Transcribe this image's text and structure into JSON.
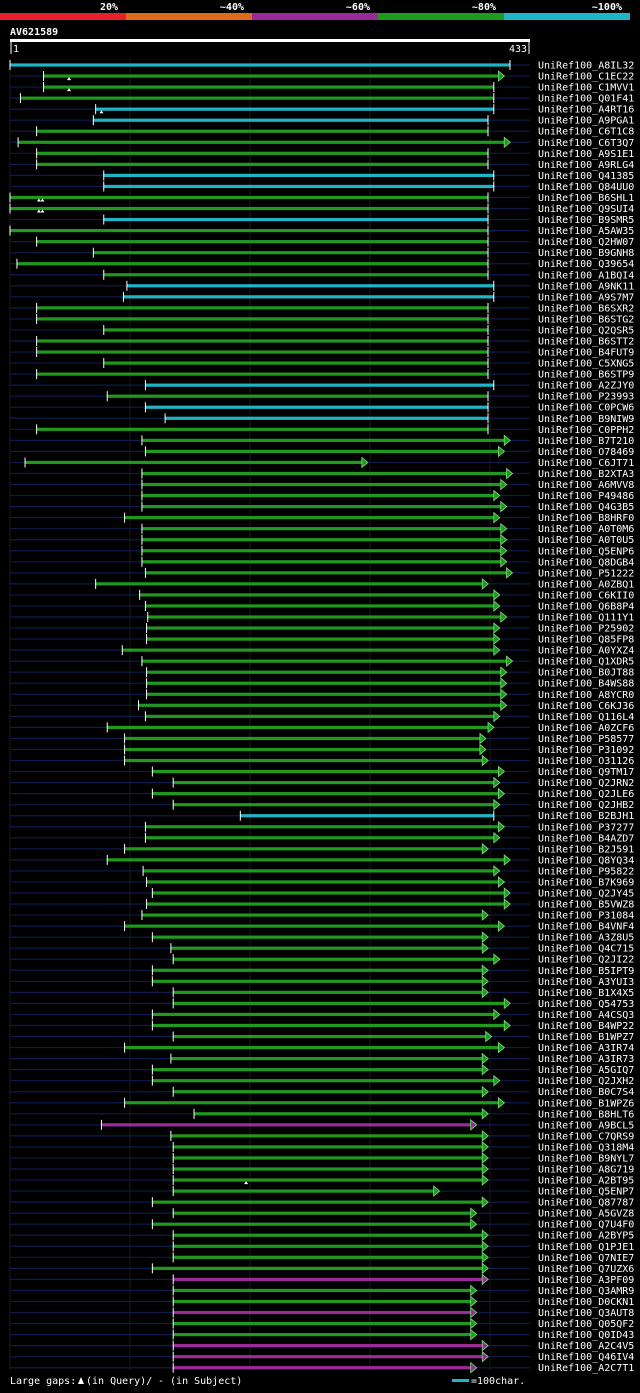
{
  "chart_data": {
    "type": "alignment-overview",
    "title": "AV621589",
    "query_length": 433,
    "axis": {
      "start_label": "1",
      "end_label": "433"
    },
    "identity_legend": [
      {
        "label": "20%",
        "color": "#e8202a"
      },
      {
        "label": "~40%",
        "color": "#e06a1a"
      },
      {
        "label": "~60%",
        "color": "#9b2b9b"
      },
      {
        "label": "~80%",
        "color": "#1f9a1f"
      },
      {
        "label": "~100%",
        "color": "#1fb5c8"
      }
    ],
    "footer": {
      "gaps_label": "Large gaps:",
      "query_gap_text": "(in Query)/",
      "subject_gap_text": "- (in Subject)",
      "scale_text": "=100char."
    },
    "hits": [
      {
        "id": "UniRef100_A8IL32",
        "s": 1,
        "e": 433,
        "c": "cyan",
        "q": [],
        "a": false
      },
      {
        "id": "UniRef100_C1EC22",
        "s": 30,
        "e": 423,
        "c": "green",
        "q": [],
        "a": true
      },
      {
        "id": "UniRef100_C1MVV1",
        "s": 30,
        "e": 419,
        "c": "green",
        "q": [
          52
        ],
        "a": false
      },
      {
        "id": "UniRef100_Q01F41",
        "s": 10,
        "e": 419,
        "c": "green",
        "q": [
          52
        ],
        "a": false
      },
      {
        "id": "UniRef100_A4RT16",
        "s": 75,
        "e": 419,
        "c": "cyan",
        "q": [],
        "a": false
      },
      {
        "id": "UniRef100_A9PGA1",
        "s": 73,
        "e": 414,
        "c": "cyan",
        "q": [
          80
        ],
        "a": false
      },
      {
        "id": "UniRef100_C6T1C8",
        "s": 24,
        "e": 414,
        "c": "green",
        "q": [],
        "a": false
      },
      {
        "id": "UniRef100_C6T3Q7",
        "s": 8,
        "e": 428,
        "c": "green",
        "q": [],
        "a": true
      },
      {
        "id": "UniRef100_A9S1E1",
        "s": 24,
        "e": 414,
        "c": "green",
        "q": [],
        "a": false
      },
      {
        "id": "UniRef100_A9RLG4",
        "s": 24,
        "e": 414,
        "c": "green",
        "q": [],
        "a": false
      },
      {
        "id": "UniRef100_Q41385",
        "s": 82,
        "e": 419,
        "c": "cyan",
        "q": [],
        "a": false
      },
      {
        "id": "UniRef100_Q84UU0",
        "s": 82,
        "e": 419,
        "c": "cyan",
        "q": [],
        "a": false
      },
      {
        "id": "UniRef100_B6SHL1",
        "s": 1,
        "e": 414,
        "c": "green",
        "q": [],
        "a": false
      },
      {
        "id": "UniRef100_Q9SUI4",
        "s": 1,
        "e": 414,
        "c": "green",
        "q": [
          26,
          29
        ],
        "a": false
      },
      {
        "id": "UniRef100_B9SMR5",
        "s": 82,
        "e": 414,
        "c": "cyan",
        "q": [
          26,
          29
        ],
        "a": false
      },
      {
        "id": "UniRef100_A5AW35",
        "s": 1,
        "e": 414,
        "c": "green",
        "q": [],
        "a": false
      },
      {
        "id": "UniRef100_Q2HW07",
        "s": 24,
        "e": 414,
        "c": "green",
        "q": [],
        "a": false
      },
      {
        "id": "UniRef100_B9GNH8",
        "s": 73,
        "e": 414,
        "c": "green",
        "q": [],
        "a": false
      },
      {
        "id": "UniRef100_Q39654",
        "s": 7,
        "e": 414,
        "c": "green",
        "q": [],
        "a": false
      },
      {
        "id": "UniRef100_A1BQI4",
        "s": 82,
        "e": 414,
        "c": "green",
        "q": [],
        "a": false
      },
      {
        "id": "UniRef100_A9NK11",
        "s": 102,
        "e": 419,
        "c": "cyan",
        "q": [],
        "a": false
      },
      {
        "id": "UniRef100_A9S7M7",
        "s": 99,
        "e": 419,
        "c": "cyan",
        "q": [],
        "a": false
      },
      {
        "id": "UniRef100_B6SXR2",
        "s": 24,
        "e": 414,
        "c": "green",
        "q": [],
        "a": false
      },
      {
        "id": "UniRef100_B6STG2",
        "s": 24,
        "e": 414,
        "c": "green",
        "q": [],
        "a": false
      },
      {
        "id": "UniRef100_Q2QSR5",
        "s": 82,
        "e": 414,
        "c": "green",
        "q": [],
        "a": false
      },
      {
        "id": "UniRef100_B6STT2",
        "s": 24,
        "e": 414,
        "c": "green",
        "q": [],
        "a": false
      },
      {
        "id": "UniRef100_B4FUT9",
        "s": 24,
        "e": 414,
        "c": "green",
        "q": [],
        "a": false
      },
      {
        "id": "UniRef100_C5XNG5",
        "s": 82,
        "e": 414,
        "c": "green",
        "q": [],
        "a": false
      },
      {
        "id": "UniRef100_B6STP9",
        "s": 24,
        "e": 414,
        "c": "green",
        "q": [],
        "a": false
      },
      {
        "id": "UniRef100_A2ZJY0",
        "s": 118,
        "e": 419,
        "c": "cyan",
        "q": [],
        "a": false
      },
      {
        "id": "UniRef100_P23993",
        "s": 85,
        "e": 414,
        "c": "green",
        "q": [],
        "a": false
      },
      {
        "id": "UniRef100_C0PCW6",
        "s": 118,
        "e": 414,
        "c": "cyan",
        "q": [],
        "a": false
      },
      {
        "id": "UniRef100_B9NIW9",
        "s": 135,
        "e": 414,
        "c": "cyan",
        "q": [],
        "a": false
      },
      {
        "id": "UniRef100_C0PPH2",
        "s": 24,
        "e": 414,
        "c": "green",
        "q": [],
        "a": false
      },
      {
        "id": "UniRef100_B7T210",
        "s": 115,
        "e": 428,
        "c": "green",
        "q": [],
        "a": true
      },
      {
        "id": "UniRef100_O78469",
        "s": 118,
        "e": 423,
        "c": "green",
        "q": [],
        "a": true
      },
      {
        "id": "UniRef100_C6JT71",
        "s": 14,
        "e": 305,
        "c": "green",
        "q": [],
        "a": true
      },
      {
        "id": "UniRef100_B2XTA3",
        "s": 115,
        "e": 430,
        "c": "green",
        "q": [],
        "a": true
      },
      {
        "id": "UniRef100_A6MVV8",
        "s": 115,
        "e": 425,
        "c": "green",
        "q": [],
        "a": true
      },
      {
        "id": "UniRef100_P49486",
        "s": 115,
        "e": 419,
        "c": "green",
        "q": [],
        "a": true
      },
      {
        "id": "UniRef100_Q4G3B5",
        "s": 115,
        "e": 425,
        "c": "green",
        "q": [],
        "a": true
      },
      {
        "id": "UniRef100_B8HRF0",
        "s": 100,
        "e": 419,
        "c": "green",
        "q": [],
        "a": true
      },
      {
        "id": "UniRef100_A0T0M6",
        "s": 115,
        "e": 425,
        "c": "green",
        "q": [],
        "a": true
      },
      {
        "id": "UniRef100_A0T0U5",
        "s": 115,
        "e": 425,
        "c": "green",
        "q": [],
        "a": true
      },
      {
        "id": "UniRef100_Q5ENP6",
        "s": 115,
        "e": 425,
        "c": "green",
        "q": [],
        "a": true
      },
      {
        "id": "UniRef100_Q8DGB4",
        "s": 115,
        "e": 425,
        "c": "green",
        "q": [],
        "a": true
      },
      {
        "id": "UniRef100_P51222",
        "s": 118,
        "e": 430,
        "c": "green",
        "q": [],
        "a": true
      },
      {
        "id": "UniRef100_A0ZBQ1",
        "s": 75,
        "e": 409,
        "c": "green",
        "q": [],
        "a": true
      },
      {
        "id": "UniRef100_C6KII0",
        "s": 113,
        "e": 419,
        "c": "green",
        "q": [],
        "a": true
      },
      {
        "id": "UniRef100_Q6B8P4",
        "s": 118,
        "e": 419,
        "c": "green",
        "q": [],
        "a": true
      },
      {
        "id": "UniRef100_Q111Y1",
        "s": 120,
        "e": 425,
        "c": "green",
        "q": [],
        "a": true
      },
      {
        "id": "UniRef100_P25902",
        "s": 119,
        "e": 419,
        "c": "green",
        "q": [],
        "a": true
      },
      {
        "id": "UniRef100_Q85FP8",
        "s": 119,
        "e": 419,
        "c": "green",
        "q": [],
        "a": true
      },
      {
        "id": "UniRef100_A0YXZ4",
        "s": 98,
        "e": 419,
        "c": "green",
        "q": [],
        "a": true
      },
      {
        "id": "UniRef100_Q1XDR5",
        "s": 115,
        "e": 430,
        "c": "green",
        "q": [],
        "a": true
      },
      {
        "id": "UniRef100_B0JT88",
        "s": 119,
        "e": 425,
        "c": "green",
        "q": [],
        "a": true
      },
      {
        "id": "UniRef100_B4WS88",
        "s": 119,
        "e": 425,
        "c": "green",
        "q": [],
        "a": true
      },
      {
        "id": "UniRef100_A8YCR0",
        "s": 119,
        "e": 425,
        "c": "green",
        "q": [],
        "a": true
      },
      {
        "id": "UniRef100_C6KJ36",
        "s": 112,
        "e": 425,
        "c": "green",
        "q": [],
        "a": true
      },
      {
        "id": "UniRef100_Q116L4",
        "s": 118,
        "e": 419,
        "c": "green",
        "q": [],
        "a": true
      },
      {
        "id": "UniRef100_A0ZCF6",
        "s": 85,
        "e": 414,
        "c": "green",
        "q": [],
        "a": true
      },
      {
        "id": "UniRef100_P58577",
        "s": 100,
        "e": 407,
        "c": "green",
        "q": [],
        "a": true
      },
      {
        "id": "UniRef100_P31092",
        "s": 100,
        "e": 407,
        "c": "green",
        "q": [],
        "a": true
      },
      {
        "id": "UniRef100_O31126",
        "s": 100,
        "e": 409,
        "c": "green",
        "q": [],
        "a": true
      },
      {
        "id": "UniRef100_Q9TM17",
        "s": 124,
        "e": 423,
        "c": "green",
        "q": [],
        "a": true
      },
      {
        "id": "UniRef100_Q2JRN2",
        "s": 142,
        "e": 419,
        "c": "green",
        "q": [],
        "a": true
      },
      {
        "id": "UniRef100_Q2JLE6",
        "s": 124,
        "e": 423,
        "c": "green",
        "q": [],
        "a": true
      },
      {
        "id": "UniRef100_Q2JHB2",
        "s": 142,
        "e": 419,
        "c": "green",
        "q": [],
        "a": true
      },
      {
        "id": "UniRef100_B2BJH1",
        "s": 200,
        "e": 419,
        "c": "cyan",
        "q": [],
        "a": false
      },
      {
        "id": "UniRef100_P37277",
        "s": 118,
        "e": 423,
        "c": "green",
        "q": [],
        "a": true
      },
      {
        "id": "UniRef100_B4AZD7",
        "s": 118,
        "e": 419,
        "c": "green",
        "q": [],
        "a": true
      },
      {
        "id": "UniRef100_B2J591",
        "s": 100,
        "e": 409,
        "c": "green",
        "q": [],
        "a": true
      },
      {
        "id": "UniRef100_Q8YQ34",
        "s": 85,
        "e": 428,
        "c": "green",
        "q": [],
        "a": true
      },
      {
        "id": "UniRef100_P95822",
        "s": 116,
        "e": 419,
        "c": "green",
        "q": [],
        "a": true
      },
      {
        "id": "UniRef100_B7K969",
        "s": 119,
        "e": 423,
        "c": "green",
        "q": [],
        "a": true
      },
      {
        "id": "UniRef100_Q2JY45",
        "s": 124,
        "e": 428,
        "c": "green",
        "q": [],
        "a": true
      },
      {
        "id": "UniRef100_B5VWZ8",
        "s": 119,
        "e": 428,
        "c": "green",
        "q": [],
        "a": true
      },
      {
        "id": "UniRef100_P31084",
        "s": 115,
        "e": 409,
        "c": "green",
        "q": [],
        "a": true
      },
      {
        "id": "UniRef100_B4VNF4",
        "s": 100,
        "e": 423,
        "c": "green",
        "q": [],
        "a": true
      },
      {
        "id": "UniRef100_A3Z8U5",
        "s": 124,
        "e": 409,
        "c": "green",
        "q": [],
        "a": true
      },
      {
        "id": "UniRef100_Q4C715",
        "s": 140,
        "e": 409,
        "c": "green",
        "q": [],
        "a": true
      },
      {
        "id": "UniRef100_Q2JI22",
        "s": 142,
        "e": 419,
        "c": "green",
        "q": [],
        "a": true
      },
      {
        "id": "UniRef100_B5IPT9",
        "s": 124,
        "e": 409,
        "c": "green",
        "q": [],
        "a": true
      },
      {
        "id": "UniRef100_A3YUI3",
        "s": 124,
        "e": 409,
        "c": "green",
        "q": [],
        "a": true
      },
      {
        "id": "UniRef100_B1X4X5",
        "s": 142,
        "e": 409,
        "c": "green",
        "q": [],
        "a": true
      },
      {
        "id": "UniRef100_Q54753",
        "s": 142,
        "e": 428,
        "c": "green",
        "q": [],
        "a": true
      },
      {
        "id": "UniRef100_A4CSQ3",
        "s": 124,
        "e": 419,
        "c": "green",
        "q": [],
        "a": true
      },
      {
        "id": "UniRef100_B4WP22",
        "s": 124,
        "e": 428,
        "c": "green",
        "q": [],
        "a": true
      },
      {
        "id": "UniRef100_B1WPZ7",
        "s": 142,
        "e": 412,
        "c": "green",
        "q": [],
        "a": true
      },
      {
        "id": "UniRef100_A3IR74",
        "s": 100,
        "e": 423,
        "c": "green",
        "q": [],
        "a": true
      },
      {
        "id": "UniRef100_A3IR73",
        "s": 140,
        "e": 409,
        "c": "green",
        "q": [],
        "a": true
      },
      {
        "id": "UniRef100_A5GIQ7",
        "s": 124,
        "e": 409,
        "c": "green",
        "q": [],
        "a": true
      },
      {
        "id": "UniRef100_Q2JXH2",
        "s": 124,
        "e": 419,
        "c": "green",
        "q": [],
        "a": true
      },
      {
        "id": "UniRef100_B0C7S4",
        "s": 142,
        "e": 409,
        "c": "green",
        "q": [],
        "a": true
      },
      {
        "id": "UniRef100_B1WPZ6",
        "s": 100,
        "e": 423,
        "c": "green",
        "q": [],
        "a": true
      },
      {
        "id": "UniRef100_B8HLT6",
        "s": 160,
        "e": 409,
        "c": "green",
        "q": [],
        "a": true
      },
      {
        "id": "UniRef100_A9BCL5",
        "s": 80,
        "e": 399,
        "c": "magenta",
        "q": [],
        "a": true
      },
      {
        "id": "UniRef100_C7QRS9",
        "s": 140,
        "e": 409,
        "c": "green",
        "q": [],
        "a": true
      },
      {
        "id": "UniRef100_Q318M4",
        "s": 142,
        "e": 409,
        "c": "green",
        "q": [],
        "a": true
      },
      {
        "id": "UniRef100_B9NYL7",
        "s": 142,
        "e": 409,
        "c": "green",
        "q": [],
        "a": true
      },
      {
        "id": "UniRef100_A8G719",
        "s": 142,
        "e": 409,
        "c": "green",
        "q": [],
        "a": true
      },
      {
        "id": "UniRef100_A2BT95",
        "s": 142,
        "e": 409,
        "c": "green",
        "q": [],
        "a": true
      },
      {
        "id": "UniRef100_Q5ENP7",
        "s": 142,
        "e": 367,
        "c": "green",
        "q": [
          205
        ],
        "a": true
      },
      {
        "id": "UniRef100_Q87787",
        "s": 124,
        "e": 409,
        "c": "green",
        "q": [],
        "a": true
      },
      {
        "id": "UniRef100_A5GVZ8",
        "s": 142,
        "e": 399,
        "c": "green",
        "q": [],
        "a": true
      },
      {
        "id": "UniRef100_Q7U4F0",
        "s": 124,
        "e": 399,
        "c": "green",
        "q": [],
        "a": true
      },
      {
        "id": "UniRef100_A2BYP5",
        "s": 142,
        "e": 409,
        "c": "green",
        "q": [],
        "a": true
      },
      {
        "id": "UniRef100_Q1PJE1",
        "s": 142,
        "e": 409,
        "c": "green",
        "q": [],
        "a": true
      },
      {
        "id": "UniRef100_Q7NIE7",
        "s": 142,
        "e": 409,
        "c": "green",
        "q": [],
        "a": true
      },
      {
        "id": "UniRef100_Q7UZX6",
        "s": 124,
        "e": 409,
        "c": "green",
        "q": [],
        "a": true
      },
      {
        "id": "UniRef100_A3PF09",
        "s": 142,
        "e": 409,
        "c": "magenta",
        "q": [],
        "a": true
      },
      {
        "id": "UniRef100_Q3AMR9",
        "s": 142,
        "e": 399,
        "c": "green",
        "q": [],
        "a": true
      },
      {
        "id": "UniRef100_D0CKN1",
        "s": 142,
        "e": 399,
        "c": "green",
        "q": [],
        "a": true
      },
      {
        "id": "UniRef100_Q3AUT8",
        "s": 142,
        "e": 399,
        "c": "magenta",
        "q": [],
        "a": true
      },
      {
        "id": "UniRef100_Q05QF2",
        "s": 142,
        "e": 399,
        "c": "green",
        "q": [],
        "a": true
      },
      {
        "id": "UniRef100_Q0ID43",
        "s": 142,
        "e": 399,
        "c": "green",
        "q": [],
        "a": true
      },
      {
        "id": "UniRef100_A2C4V5",
        "s": 142,
        "e": 409,
        "c": "magenta",
        "q": [],
        "a": true
      },
      {
        "id": "UniRef100_Q46IV4",
        "s": 142,
        "e": 409,
        "c": "magenta",
        "q": [],
        "a": true
      },
      {
        "id": "UniRef100_A2C7T1",
        "s": 142,
        "e": 399,
        "c": "magenta",
        "q": [],
        "a": true
      }
    ]
  }
}
